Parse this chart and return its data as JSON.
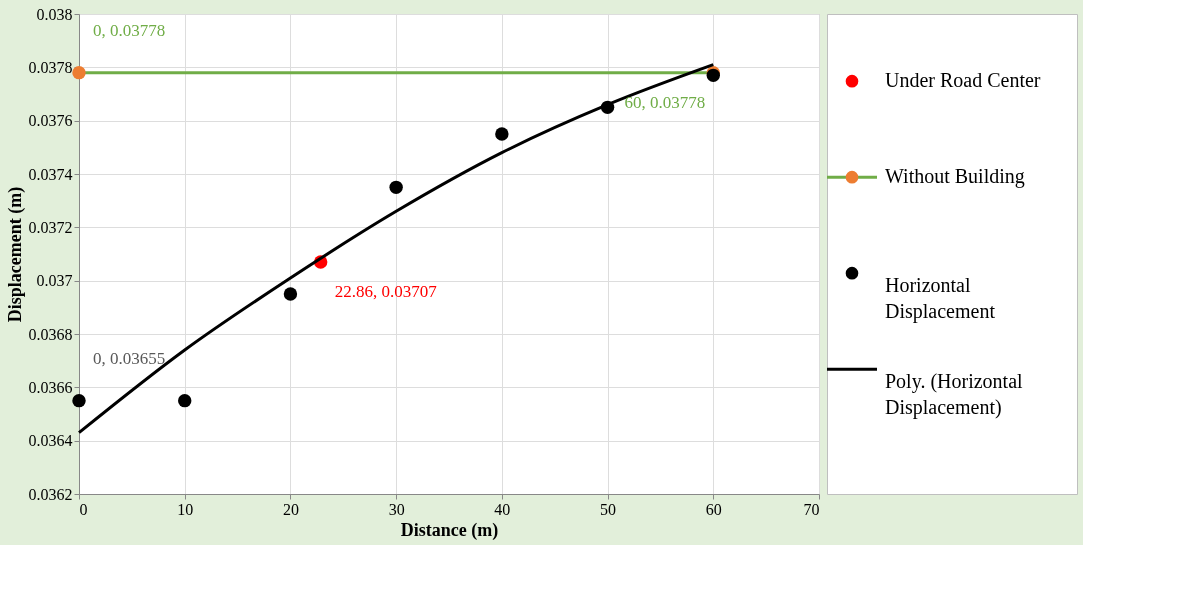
{
  "chart_data": {
    "type": "scatter",
    "xlabel": "Distance (m)",
    "ylabel": "Displacement (m)",
    "xlim": [
      0,
      70
    ],
    "xticks": [
      0,
      10,
      20,
      30,
      40,
      50,
      60,
      70
    ],
    "ylim": [
      0.0362,
      0.038
    ],
    "yticks": [
      0.0362,
      0.0364,
      0.0366,
      0.0368,
      0.037,
      0.0372,
      0.0374,
      0.0376,
      0.0378,
      0.038
    ],
    "grid": true,
    "legend": "right",
    "series": [
      {
        "name": "Under Road Center",
        "marker": "circle",
        "color": "#ff0000",
        "x": [
          22.86
        ],
        "values": [
          0.03707
        ]
      },
      {
        "name": "Without Building",
        "type": "line",
        "marker": "circle",
        "color": "#70ad47",
        "colors": [
          "#ed7d31",
          "#ed7d31"
        ],
        "x": [
          0,
          60
        ],
        "values": [
          0.03778,
          0.03778
        ]
      },
      {
        "name": "Horizontal Displacement",
        "marker": "circle",
        "color": "#000000",
        "x": [
          0,
          10,
          20,
          30,
          40,
          50,
          60
        ],
        "values": [
          0.03655,
          0.03655,
          0.03695,
          0.03735,
          0.03755,
          0.03765,
          0.03777
        ]
      },
      {
        "name": "Poly. (Horizontal Displacement)",
        "type": "line",
        "marker": "none",
        "color": "#000000",
        "x": [
          0,
          10,
          20,
          30,
          40,
          50,
          60
        ],
        "values": [
          0.03643,
          0.03674,
          0.03701,
          0.03726,
          0.03748,
          0.03766,
          0.03781
        ]
      }
    ],
    "annotations": [
      {
        "text": "0, 0.03778",
        "x": 0,
        "y": 0.03778
      },
      {
        "text": "60, 0.03778",
        "x": 60,
        "y": 0.03778
      },
      {
        "text": "22.86, 0.03707",
        "x": 22.86,
        "y": 0.03707
      },
      {
        "text": "0, 0.03655",
        "x": 0,
        "y": 0.03655
      }
    ]
  }
}
